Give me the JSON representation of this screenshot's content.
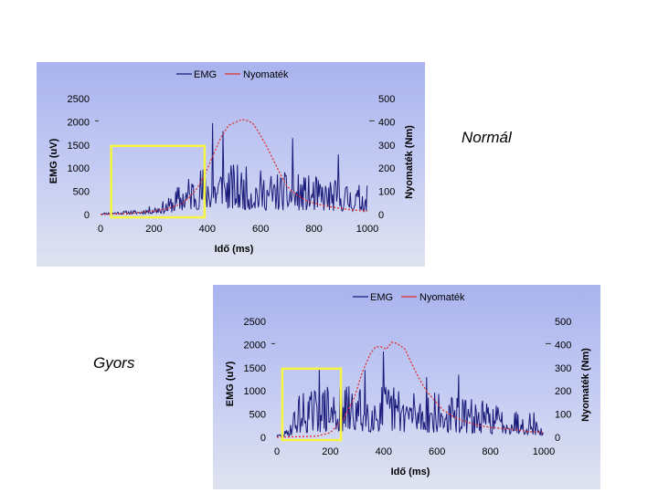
{
  "labels": {
    "top": "Normál",
    "bottom": "Gyors"
  },
  "colors": {
    "emg": "#1a1a7a",
    "torque": "#e0302a",
    "highlight": "#f5f542"
  },
  "chart_data": [
    {
      "id": "normal",
      "type": "line",
      "title": "",
      "legend": [
        "EMG",
        "Nyomaték"
      ],
      "xlabel": "Idő (ms)",
      "ylabel": "EMG (uV)",
      "y2label": "Nyomaték (Nm)",
      "xlim": [
        0,
        1000
      ],
      "ylim": [
        0,
        2500
      ],
      "y2lim": [
        0,
        500
      ],
      "xticks": [
        "0",
        "200",
        "400",
        "600",
        "800",
        "1000"
      ],
      "yticks": [
        "0",
        "500",
        "1000",
        "1500",
        "2000",
        "2500"
      ],
      "y2ticks": [
        "0",
        "100",
        "200",
        "300",
        "400",
        "500"
      ],
      "highlight_range_ms": [
        40,
        390
      ],
      "emg_seed": 11,
      "emg_profile": [
        [
          0,
          25
        ],
        [
          150,
          70
        ],
        [
          250,
          220
        ],
        [
          300,
          480
        ],
        [
          360,
          700
        ],
        [
          450,
          780
        ],
        [
          600,
          650
        ],
        [
          800,
          560
        ],
        [
          1000,
          420
        ]
      ],
      "emg_peaks": [
        [
          420,
          1970
        ],
        [
          460,
          1800
        ],
        [
          720,
          1650
        ],
        [
          890,
          1300
        ]
      ],
      "series": [
        {
          "name": "Nyomaték",
          "x": [
            0,
            100,
            200,
            250,
            300,
            330,
            360,
            390,
            420,
            450,
            480,
            510,
            530,
            550,
            570,
            590,
            620,
            650,
            680,
            700,
            740,
            780,
            830,
            880,
            940,
            1000
          ],
          "values": [
            0,
            4,
            15,
            25,
            45,
            70,
            110,
            170,
            250,
            330,
            385,
            400,
            410,
            405,
            395,
            360,
            300,
            230,
            160,
            120,
            80,
            55,
            40,
            30,
            20,
            15
          ]
        }
      ]
    },
    {
      "id": "gyors",
      "type": "line",
      "title": "",
      "legend": [
        "EMG",
        "Nyomaték"
      ],
      "xlabel": "Idő (ms)",
      "ylabel": "EMG (uV)",
      "y2label": "Nyomaték (Nm)",
      "xlim": [
        0,
        1000
      ],
      "ylim": [
        0,
        2500
      ],
      "y2lim": [
        0,
        500
      ],
      "xticks": [
        "0",
        "200",
        "400",
        "600",
        "800",
        "1000"
      ],
      "yticks": [
        "0",
        "500",
        "1000",
        "1500",
        "2000",
        "2500"
      ],
      "y2ticks": [
        "0",
        "100",
        "200",
        "300",
        "400",
        "500"
      ],
      "highlight_range_ms": [
        20,
        240
      ],
      "emg_seed": 29,
      "emg_profile": [
        [
          0,
          30
        ],
        [
          40,
          120
        ],
        [
          80,
          650
        ],
        [
          200,
          780
        ],
        [
          300,
          760
        ],
        [
          420,
          800
        ],
        [
          600,
          650
        ],
        [
          800,
          520
        ],
        [
          960,
          400
        ],
        [
          1000,
          60
        ]
      ],
      "emg_peaks": [
        [
          160,
          1500
        ],
        [
          330,
          1450
        ],
        [
          400,
          1850
        ],
        [
          560,
          1300
        ],
        [
          680,
          1350
        ]
      ],
      "series": [
        {
          "name": "Nyomaték",
          "x": [
            0,
            150,
            200,
            250,
            290,
            320,
            350,
            370,
            390,
            410,
            430,
            450,
            480,
            500,
            530,
            560,
            590,
            620,
            660,
            700,
            760,
            820,
            880,
            940,
            1000
          ],
          "values": [
            0,
            5,
            20,
            80,
            170,
            280,
            360,
            390,
            390,
            380,
            410,
            405,
            380,
            330,
            260,
            200,
            160,
            120,
            90,
            70,
            50,
            40,
            35,
            25,
            20
          ]
        }
      ]
    }
  ]
}
